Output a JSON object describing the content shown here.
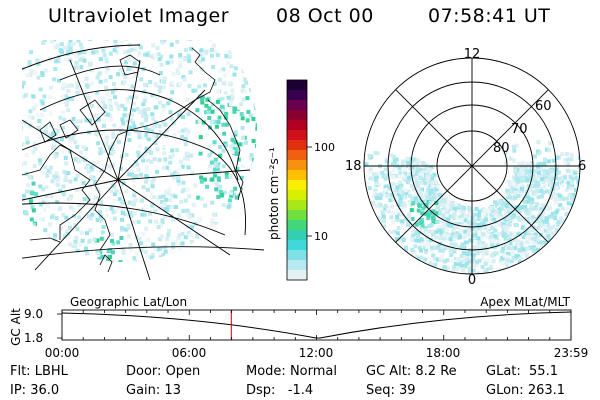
{
  "header": {
    "instrument": "Ultraviolet Imager",
    "date": "08 Oct 00",
    "time": "07:58:41 UT"
  },
  "geo_panel": {
    "label": "Geographic Lat/Lon"
  },
  "colorbar": {
    "unit_label": "photon cm⁻²s⁻¹",
    "ticks": [
      "100",
      "10"
    ],
    "colors_top_to_bottom": [
      "#1a0033",
      "#3a0050",
      "#6a0050",
      "#8a0030",
      "#b00020",
      "#d0101a",
      "#e03010",
      "#f06010",
      "#f89010",
      "#ffc000",
      "#f8f000",
      "#d8f000",
      "#a8e818",
      "#70e040",
      "#40d878",
      "#30d0b0",
      "#40d8d8",
      "#80e0e8",
      "#b8e8f0",
      "#e4f0f4"
    ]
  },
  "polar_panel": {
    "label": "Apex MLat/MLT",
    "mlt_labels": [
      "12",
      "18",
      "6",
      "0"
    ],
    "lat_labels": [
      "60",
      "70",
      "80"
    ]
  },
  "timeline": {
    "y_title": "GC Alt",
    "y_ticks": [
      "9.0",
      "1.8"
    ],
    "x_ticks": [
      "00:00",
      "06:00",
      "12:00",
      "18:00",
      "23:59"
    ],
    "current_time_fraction": 0.3326
  },
  "info": {
    "flt_label": "Flt:",
    "flt_value": "LBHL",
    "ip_label": "IP:",
    "ip_value": "36.0",
    "door_label": "Door:",
    "door_value": "Open",
    "gain_label": "Gain:",
    "gain_value": "13",
    "mode_label": "Mode:",
    "mode_value": "Normal",
    "dsp_label": "Dsp:",
    "dsp_value": "-1.4",
    "gcalt_label": "GC Alt:",
    "gcalt_value": "8.2 Re",
    "seq_label": "Seq:",
    "seq_value": "39",
    "glat_label": "GLat:",
    "glat_value": "55.1",
    "glon_label": "GLon:",
    "glon_value": "263.1"
  },
  "colors": {
    "marker": "#cc0000",
    "auroral_green": "#40d8a0",
    "auroral_cyan": "#80e0e8"
  }
}
